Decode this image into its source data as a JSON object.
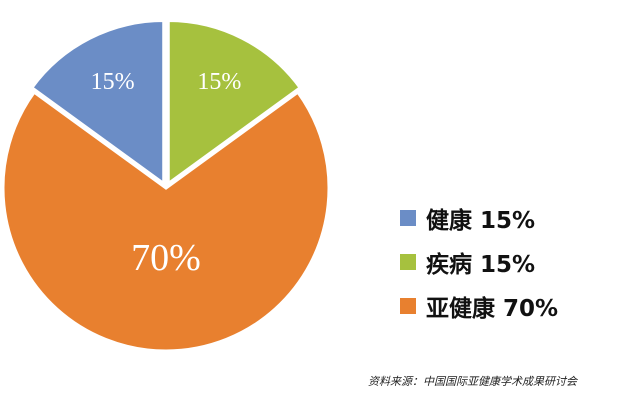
{
  "chart_data": {
    "type": "pie",
    "categories": [
      "健康",
      "疾病",
      "亚健康"
    ],
    "values": [
      15,
      15,
      70
    ],
    "slice_labels": [
      "15%",
      "15%",
      "70%"
    ],
    "colors": [
      "#6B8DC6",
      "#A6C13E",
      "#E8802F"
    ],
    "legend_labels": [
      "健康 15%",
      "疾病 15%",
      "亚健康 70%"
    ],
    "legend_position": "right",
    "exploded": true
  },
  "footer": {
    "source": "资料来源：中国国际亚健康学术成果研讨会"
  }
}
